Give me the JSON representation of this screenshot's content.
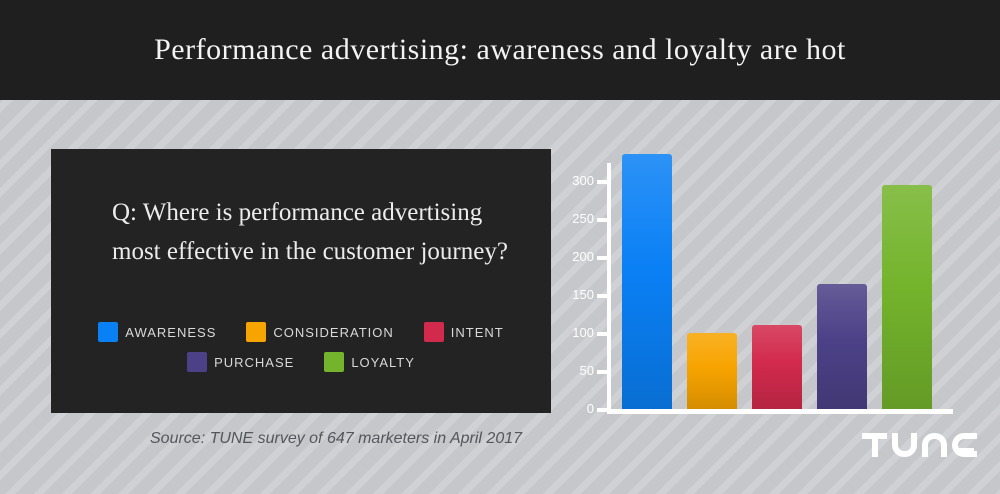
{
  "header": {
    "title": "Performance advertising: awareness and loyalty are hot"
  },
  "panel": {
    "question": "Q: Where is performance advertising most effective in the customer journey?"
  },
  "source": {
    "text": "Source: TUNE survey of 647 marketers in April 2017"
  },
  "logo": {
    "text": "TUNE"
  },
  "colors": {
    "header_bg": "#1f1f1f",
    "panel_bg": "#232323",
    "background_base": "#c6c7ca",
    "background_stripe": "#d0d1d4",
    "axis": "#ffffff",
    "legend_label": "#d9d9d9",
    "source_text": "#53565b"
  },
  "chart_data": {
    "type": "bar",
    "categories": [
      "AWARENESS",
      "CONSIDERATION",
      "INTENT",
      "PURCHASE",
      "LOYALTY"
    ],
    "values": [
      335,
      100,
      110,
      165,
      295
    ],
    "colors": [
      "#0a80f5",
      "#f7a400",
      "#d22a4c",
      "#4c4187",
      "#74b42c"
    ],
    "title": "",
    "xlabel": "",
    "ylabel": "",
    "ylim": [
      0,
      300
    ],
    "yticks": [
      0,
      50,
      100,
      150,
      200,
      250,
      300
    ],
    "grid": false,
    "legend_position": "left-panel",
    "legend_rows": [
      3,
      2
    ]
  }
}
